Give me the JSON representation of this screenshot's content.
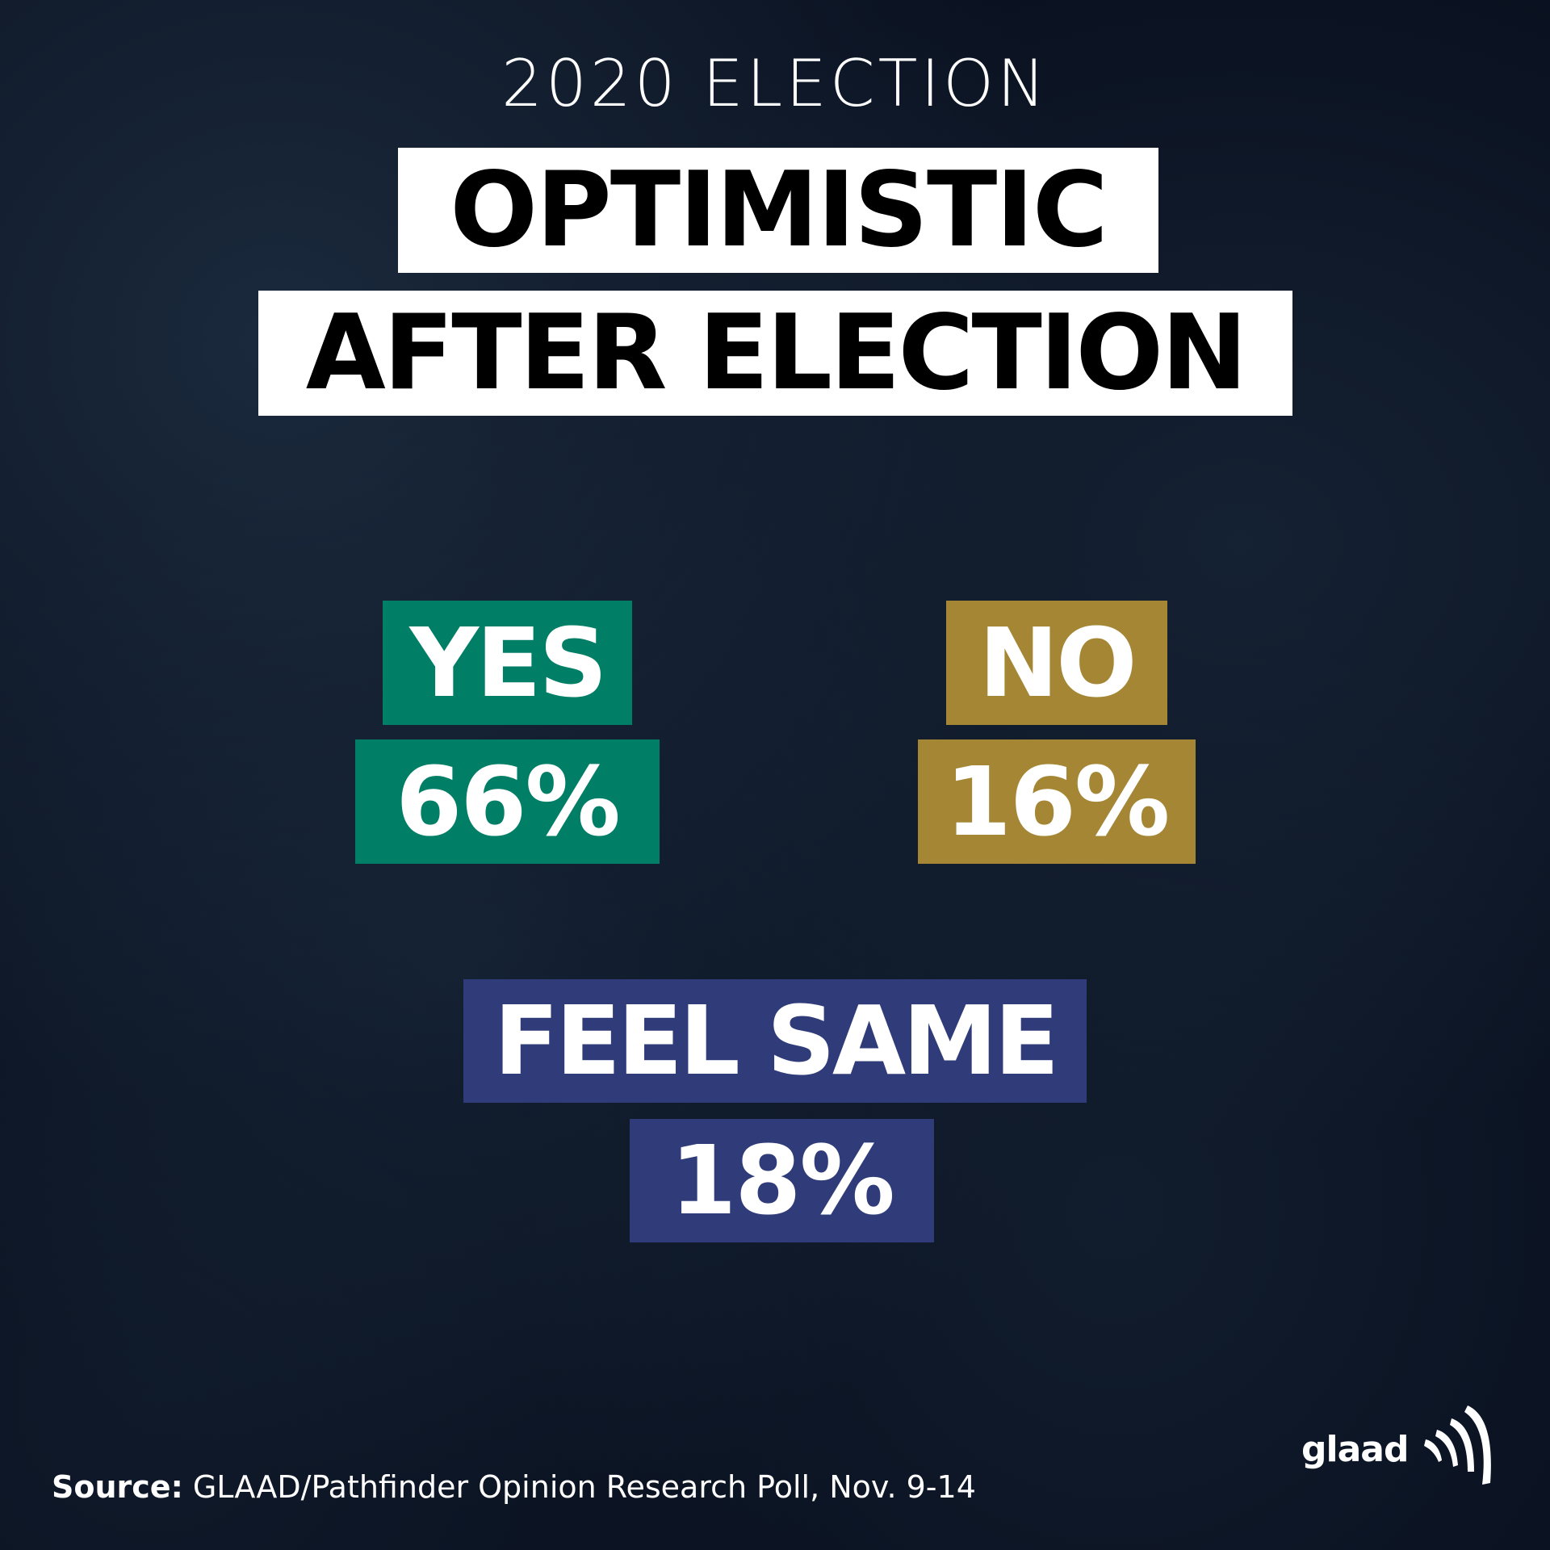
{
  "header": {
    "eyebrow": "2020 ELECTION",
    "title_line_1": "OPTIMISTIC",
    "title_line_2": "AFTER ELECTION"
  },
  "results": [
    {
      "label": "YES",
      "value": "66%",
      "color": "#007e66"
    },
    {
      "label": "NO",
      "value": "16%",
      "color": "#a48634"
    },
    {
      "label": "FEEL SAME",
      "value": "18%",
      "color": "#2f3c79"
    }
  ],
  "footer": {
    "source_label": "Source:",
    "source_text": " GLAAD/Pathfinder Opinion Research Poll, Nov. 9-14",
    "logo_text": "glaad"
  },
  "colors": {
    "background": "#0a1120",
    "title_box": "#ffffff",
    "title_text": "#000000"
  }
}
